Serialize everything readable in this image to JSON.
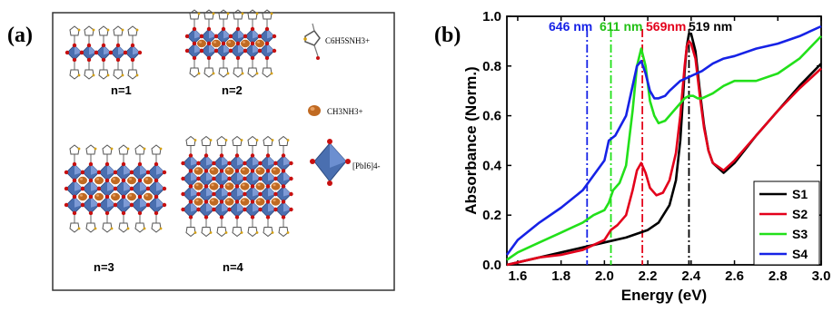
{
  "panel_a": {
    "label": "(a)",
    "captions": [
      "n=1",
      "n=2",
      "n=3",
      "n=4"
    ],
    "legend": [
      {
        "icon": "thiophene-molecule-icon",
        "text": "C6H5SNH3+"
      },
      {
        "icon": "ch3nh3-sphere-icon",
        "text": "CH3NH3+"
      },
      {
        "icon": "pbi6-octahedron-icon",
        "text": "[PbI6]4-"
      }
    ],
    "colors": {
      "octahedron": "#4a6fb0",
      "sphere": "#c06a22",
      "iodide": "#c81010"
    }
  },
  "panel_b": {
    "label": "(b)"
  },
  "chart_data": {
    "type": "line",
    "xlabel": "Energy (eV)",
    "ylabel": "Absorbance (Norm.)",
    "xlim": [
      1.55,
      3.0
    ],
    "ylim": [
      0.0,
      1.0
    ],
    "xticks": [
      "1.6",
      "1.8",
      "2.0",
      "2.2",
      "2.4",
      "2.6",
      "2.8",
      "3.0"
    ],
    "yticks": [
      "0.0",
      "0.2",
      "0.4",
      "0.6",
      "0.8",
      "1.0"
    ],
    "legend_position": "bottom-right",
    "grid": false,
    "series": [
      {
        "name": "S1",
        "color": "#000000",
        "x": [
          1.55,
          1.6,
          1.7,
          1.8,
          1.9,
          2.0,
          2.1,
          2.2,
          2.25,
          2.3,
          2.33,
          2.35,
          2.37,
          2.38,
          2.39,
          2.4,
          2.42,
          2.44,
          2.46,
          2.48,
          2.5,
          2.55,
          2.6,
          2.7,
          2.8,
          2.9,
          3.0
        ],
        "y": [
          0.0,
          0.01,
          0.03,
          0.05,
          0.07,
          0.09,
          0.11,
          0.14,
          0.17,
          0.24,
          0.34,
          0.5,
          0.78,
          0.88,
          0.93,
          0.93,
          0.86,
          0.7,
          0.56,
          0.46,
          0.41,
          0.37,
          0.41,
          0.52,
          0.62,
          0.72,
          0.81
        ]
      },
      {
        "name": "S2",
        "color": "#e3001b",
        "x": [
          1.55,
          1.6,
          1.7,
          1.8,
          1.9,
          1.95,
          2.0,
          2.03,
          2.06,
          2.1,
          2.13,
          2.15,
          2.17,
          2.19,
          2.21,
          2.24,
          2.27,
          2.3,
          2.33,
          2.35,
          2.37,
          2.38,
          2.39,
          2.4,
          2.42,
          2.44,
          2.46,
          2.48,
          2.5,
          2.55,
          2.6,
          2.7,
          2.8,
          2.9,
          3.0
        ],
        "y": [
          0.0,
          0.01,
          0.03,
          0.04,
          0.06,
          0.08,
          0.1,
          0.14,
          0.16,
          0.2,
          0.3,
          0.38,
          0.41,
          0.37,
          0.31,
          0.28,
          0.29,
          0.34,
          0.45,
          0.6,
          0.8,
          0.88,
          0.9,
          0.89,
          0.83,
          0.68,
          0.55,
          0.46,
          0.41,
          0.38,
          0.42,
          0.52,
          0.62,
          0.71,
          0.79
        ]
      },
      {
        "name": "S3",
        "color": "#22e01a",
        "x": [
          1.55,
          1.6,
          1.7,
          1.8,
          1.9,
          1.95,
          2.0,
          2.02,
          2.04,
          2.07,
          2.1,
          2.13,
          2.15,
          2.17,
          2.19,
          2.21,
          2.23,
          2.25,
          2.28,
          2.3,
          2.33,
          2.35,
          2.37,
          2.39,
          2.41,
          2.43,
          2.45,
          2.5,
          2.55,
          2.6,
          2.65,
          2.7,
          2.8,
          2.9,
          3.0
        ],
        "y": [
          0.02,
          0.05,
          0.09,
          0.13,
          0.17,
          0.2,
          0.22,
          0.25,
          0.3,
          0.33,
          0.4,
          0.62,
          0.8,
          0.87,
          0.8,
          0.66,
          0.6,
          0.57,
          0.58,
          0.6,
          0.63,
          0.65,
          0.67,
          0.68,
          0.68,
          0.67,
          0.67,
          0.69,
          0.72,
          0.74,
          0.74,
          0.74,
          0.77,
          0.83,
          0.92
        ]
      },
      {
        "name": "S4",
        "color": "#1622e6",
        "x": [
          1.55,
          1.6,
          1.7,
          1.8,
          1.9,
          1.95,
          2.0,
          2.02,
          2.05,
          2.1,
          2.13,
          2.15,
          2.17,
          2.19,
          2.21,
          2.23,
          2.25,
          2.28,
          2.3,
          2.35,
          2.4,
          2.45,
          2.5,
          2.55,
          2.6,
          2.7,
          2.8,
          2.9,
          3.0
        ],
        "y": [
          0.04,
          0.1,
          0.17,
          0.23,
          0.3,
          0.36,
          0.42,
          0.5,
          0.52,
          0.6,
          0.72,
          0.8,
          0.82,
          0.77,
          0.7,
          0.67,
          0.67,
          0.68,
          0.7,
          0.74,
          0.76,
          0.78,
          0.81,
          0.83,
          0.84,
          0.87,
          0.89,
          0.92,
          0.96
        ]
      }
    ],
    "markers": [
      {
        "label": "646 nm",
        "x": 1.92,
        "color": "#1622e6",
        "label_color": "#1622e6"
      },
      {
        "label": "611 nm",
        "x": 2.03,
        "color": "#22e01a",
        "label_color": "#22c015"
      },
      {
        "label": "569nm",
        "x": 2.175,
        "color": "#e3001b",
        "label_color": "#e3001b"
      },
      {
        "label": "519 nm",
        "x": 2.39,
        "color": "#000000",
        "label_color": "#000000"
      }
    ]
  }
}
